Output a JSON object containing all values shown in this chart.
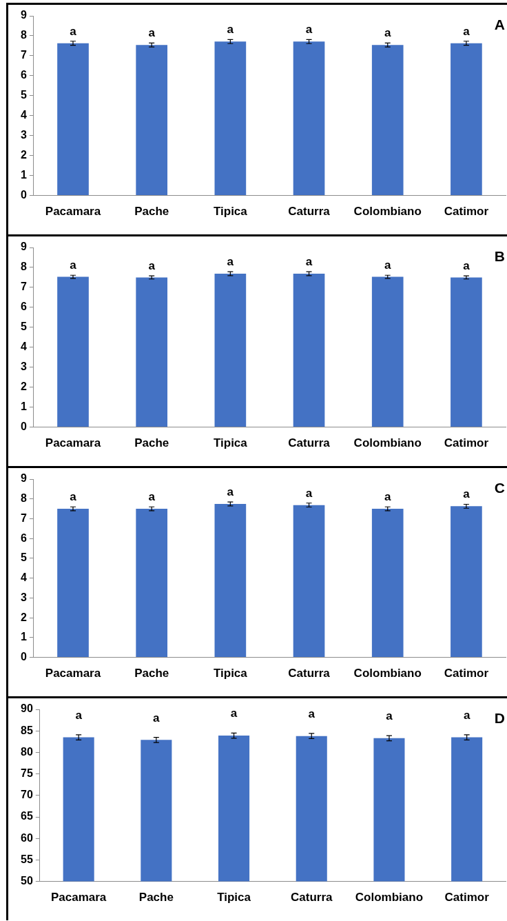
{
  "chart_data": [
    {
      "type": "bar",
      "title": "A",
      "categories": [
        "Pacamara",
        "Pache",
        "Tipica",
        "Caturra",
        "Colombiano",
        "Catimor"
      ],
      "values": [
        7.63,
        7.54,
        7.71,
        7.71,
        7.54,
        7.63
      ],
      "errors": [
        0.1,
        0.1,
        0.1,
        0.1,
        0.1,
        0.1
      ],
      "value_labels": [
        "a",
        "a",
        "a",
        "a",
        "a",
        "a"
      ],
      "color": "#4472c4",
      "ylim": [
        0,
        9
      ],
      "yticks": [
        0,
        1,
        2,
        3,
        4,
        5,
        6,
        7,
        8,
        9
      ]
    },
    {
      "type": "bar",
      "title": "B",
      "categories": [
        "Pacamara",
        "Pache",
        "Tipica",
        "Caturra",
        "Colombiano",
        "Catimor"
      ],
      "values": [
        7.53,
        7.5,
        7.69,
        7.69,
        7.53,
        7.5
      ],
      "errors": [
        0.08,
        0.08,
        0.1,
        0.1,
        0.08,
        0.08
      ],
      "value_labels": [
        "a",
        "a",
        "a",
        "a",
        "a",
        "a"
      ],
      "color": "#4472c4",
      "ylim": [
        0,
        9
      ],
      "yticks": [
        0,
        1,
        2,
        3,
        4,
        5,
        6,
        7,
        8,
        9
      ]
    },
    {
      "type": "bar",
      "title": "C",
      "categories": [
        "Pacamara",
        "Pache",
        "Tipica",
        "Caturra",
        "Colombiano",
        "Catimor"
      ],
      "values": [
        7.5,
        7.5,
        7.75,
        7.69,
        7.5,
        7.63
      ],
      "errors": [
        0.1,
        0.1,
        0.1,
        0.1,
        0.1,
        0.1
      ],
      "value_labels": [
        "a",
        "a",
        "a",
        "a",
        "a",
        "a"
      ],
      "color": "#4472c4",
      "ylim": [
        0,
        9
      ],
      "yticks": [
        0,
        1,
        2,
        3,
        4,
        5,
        6,
        7,
        8,
        9
      ]
    },
    {
      "type": "bar",
      "title": "D",
      "categories": [
        "Pacamara",
        "Pache",
        "Tipica",
        "Caturra",
        "Colombiano",
        "Catimor"
      ],
      "values": [
        83.5,
        82.9,
        83.9,
        83.8,
        83.3,
        83.5
      ],
      "errors": [
        0.6,
        0.6,
        0.6,
        0.6,
        0.6,
        0.6
      ],
      "value_labels": [
        "a",
        "a",
        "a",
        "a",
        "a",
        "a"
      ],
      "color": "#4472c4",
      "ylim": [
        50,
        90
      ],
      "yticks": [
        50,
        55,
        60,
        65,
        70,
        75,
        80,
        85,
        90
      ]
    }
  ]
}
